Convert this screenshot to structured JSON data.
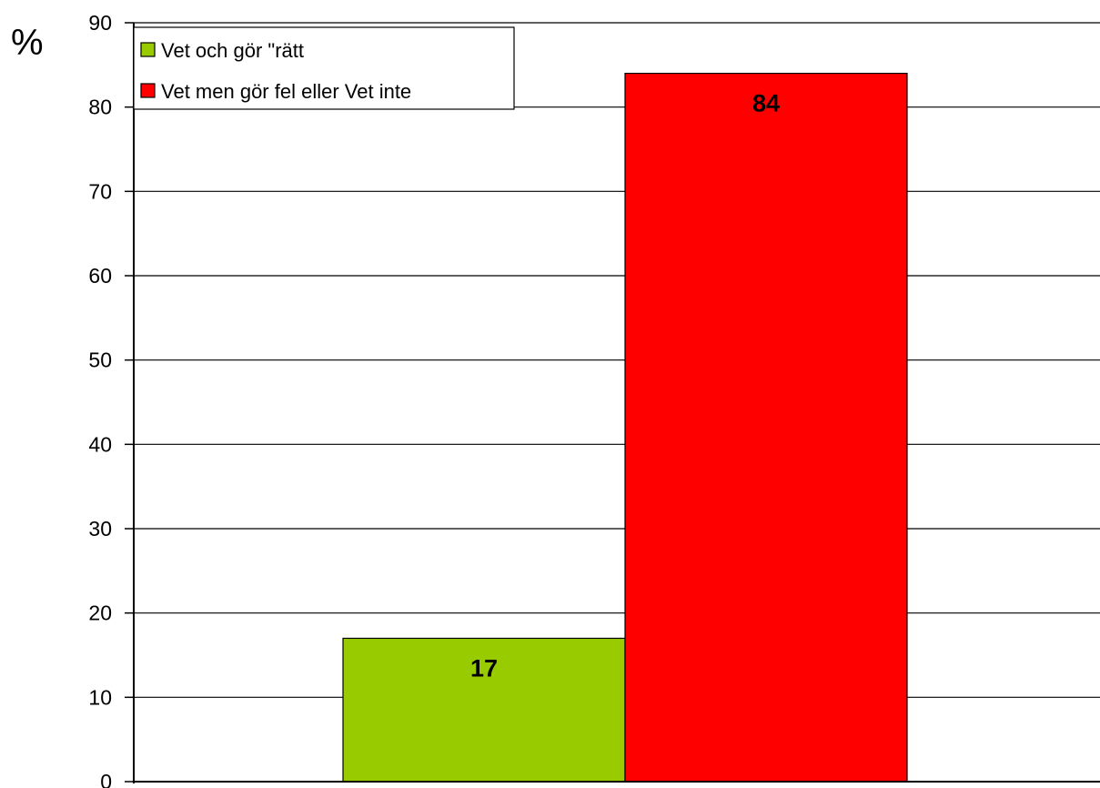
{
  "chart_data": {
    "type": "bar",
    "ylabel": "%",
    "ylim": [
      0,
      90
    ],
    "yticks": [
      0,
      10,
      20,
      30,
      40,
      50,
      60,
      70,
      80,
      90
    ],
    "grid": true,
    "legend_position": "top-left",
    "series": [
      {
        "name": "Vet och gör \"rätt",
        "value": 17,
        "color": "#99cc00"
      },
      {
        "name": "Vet men gör fel eller Vet inte",
        "value": 84,
        "color": "#ff0000"
      }
    ]
  }
}
